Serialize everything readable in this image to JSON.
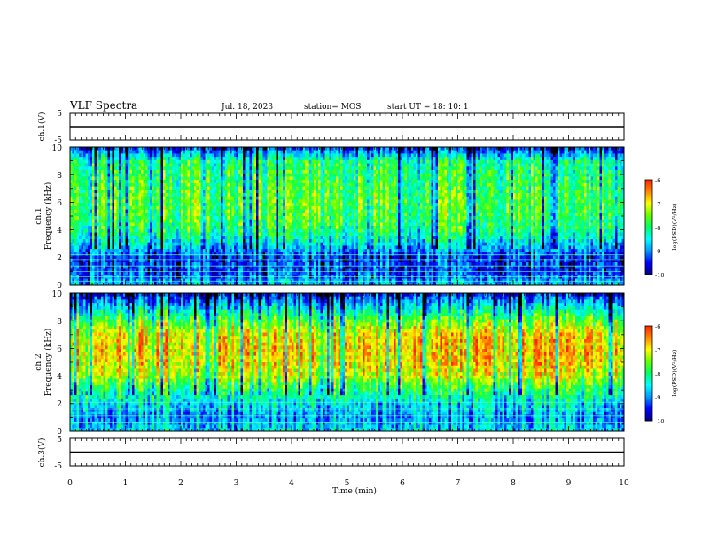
{
  "header": {
    "title": "VLF Spectra",
    "date": "Jul. 18, 2023",
    "station": "station= MOS",
    "start": "start UT = 18: 10: 1"
  },
  "colors": {
    "spectral_scale": [
      "#000000",
      "#000080",
      "#0000ff",
      "#0099ff",
      "#00ffff",
      "#00ff66",
      "#66ff00",
      "#ffff00",
      "#ff8800",
      "#ff2200",
      "#ffffff"
    ],
    "trace": "#000000",
    "axes": "#000000"
  },
  "chart_data": [
    {
      "type": "line",
      "name": "ch1-waveform",
      "ylabel": "ch.1(V)",
      "ylim": [
        -5,
        5
      ],
      "yticks": [
        "5",
        "-5"
      ],
      "xlim": [
        0,
        10
      ],
      "y": 0
    },
    {
      "type": "heatmap",
      "name": "ch1-spectrogram",
      "ylabel": "ch.1",
      "ylabel2": "Frequency (kHz)",
      "xlim": [
        0,
        10
      ],
      "ylim": [
        0,
        10
      ],
      "yticks": [
        "0",
        "2",
        "4",
        "6",
        "8",
        "10"
      ],
      "colorbar": {
        "label": "log(PSD)(V²/Hz)",
        "range": [
          -10,
          -6
        ],
        "ticks": [
          "-6",
          "-7",
          "-8",
          "-9",
          "-10"
        ]
      },
      "band_profile_khz": [
        0,
        1,
        2,
        3,
        4,
        5,
        6,
        7,
        8,
        9,
        10
      ],
      "band_level": [
        -8.8,
        -9.4,
        -9.4,
        -8.6,
        -8.0,
        -7.8,
        -7.7,
        -7.8,
        -7.9,
        -8.1,
        -9.5
      ],
      "horizontal_lines_khz": [
        0.3,
        0.6,
        1.0,
        1.4,
        1.8,
        2.2
      ]
    },
    {
      "type": "heatmap",
      "name": "ch2-spectrogram",
      "ylabel": "ch.2",
      "ylabel2": "Frequency (kHz)",
      "xlim": [
        0,
        10
      ],
      "ylim": [
        0,
        10
      ],
      "yticks": [
        "0",
        "2",
        "4",
        "6",
        "8",
        "10"
      ],
      "colorbar": {
        "label": "log(PSD)(V²/Hz)",
        "range": [
          -10,
          -6
        ],
        "ticks": [
          "-6",
          "-7",
          "-8",
          "-9",
          "-10"
        ]
      },
      "band_profile_khz": [
        0,
        1,
        2,
        3,
        4,
        5,
        6,
        7,
        8,
        9,
        10
      ],
      "band_level": [
        -8.6,
        -9.0,
        -8.6,
        -8.0,
        -7.2,
        -6.9,
        -6.8,
        -6.9,
        -7.6,
        -8.6,
        -9.6
      ],
      "horizontal_lines_khz": [
        0.6,
        1.1,
        1.6,
        2.1
      ]
    },
    {
      "type": "line",
      "name": "ch3-waveform",
      "ylabel": "ch.3(V)",
      "ylim": [
        -5,
        5
      ],
      "yticks": [
        "5",
        "-5"
      ],
      "xlim": [
        0,
        10
      ],
      "y": 0,
      "xlabel": "Time (min)",
      "xticks": [
        "0",
        "1",
        "2",
        "3",
        "4",
        "5",
        "6",
        "7",
        "8",
        "9",
        "10"
      ]
    }
  ]
}
